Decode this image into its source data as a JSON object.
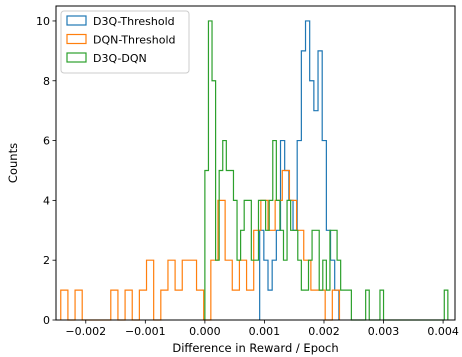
{
  "chart_data": {
    "type": "histogram",
    "xlabel": "Difference in Reward / Epoch",
    "ylabel": "Counts",
    "xlim": [
      -0.0025,
      0.0042
    ],
    "ylim": [
      0,
      10.5
    ],
    "xticks": [
      -0.002,
      -0.001,
      0.0,
      0.001,
      0.002,
      0.003,
      0.004
    ],
    "xtick_labels": [
      "−0.002",
      "−0.001",
      "0.000",
      "0.001",
      "0.002",
      "0.003",
      "0.004"
    ],
    "yticks": [
      0,
      2,
      4,
      6,
      8,
      10
    ],
    "ytick_labels": [
      "0",
      "2",
      "4",
      "6",
      "8",
      "10"
    ],
    "grid": false,
    "legend_position": "upper-left",
    "series": [
      {
        "name": "D3Q-Threshold",
        "color": "#1f77b4",
        "bin_edges": [
          0.00092,
          0.00099,
          0.00106,
          0.00113,
          0.0012,
          0.00127,
          0.00134,
          0.00141,
          0.00148,
          0.00155,
          0.00162,
          0.00169,
          0.00176,
          0.00183,
          0.0019,
          0.00197,
          0.00204,
          0.00211,
          0.00218,
          0.00225
        ],
        "counts": [
          3,
          2,
          1,
          2,
          3,
          6,
          5,
          4,
          3,
          6,
          9,
          10,
          8,
          7,
          9,
          6,
          3,
          2,
          1
        ]
      },
      {
        "name": "DQN-Threshold",
        "color": "#ff7f0e",
        "bin_edges": [
          -0.00242,
          -0.0023,
          -0.00218,
          -0.00206,
          -0.00194,
          -0.00182,
          -0.0017,
          -0.00158,
          -0.00146,
          -0.00134,
          -0.00122,
          -0.0011,
          -0.00098,
          -0.00086,
          -0.00074,
          -0.00062,
          -0.0005,
          -0.00038,
          -0.00026,
          -0.00014,
          -2e-05,
          0.0001,
          0.00022,
          0.00034,
          0.00046,
          0.00058,
          0.0007,
          0.00082,
          0.00094,
          0.00106,
          0.00118,
          0.0013,
          0.00142,
          0.00154,
          0.00166,
          0.00178,
          0.0019,
          0.00202,
          0.00214,
          0.00226
        ],
        "counts": [
          1,
          0,
          1,
          0,
          0,
          0,
          0,
          1,
          0,
          1,
          0,
          1,
          2,
          0,
          1,
          2,
          1,
          2,
          2,
          1,
          0,
          2,
          4,
          2,
          1,
          2,
          1,
          3,
          4,
          3,
          4,
          5,
          4,
          3,
          2,
          1,
          1,
          0,
          1
        ]
      },
      {
        "name": "D3Q-DQN",
        "color": "#2ca02c",
        "bin_edges": [
          0.0,
          6e-05,
          0.00012,
          0.00018,
          0.00024,
          0.0003,
          0.00036,
          0.00042,
          0.00048,
          0.00054,
          0.0006,
          0.00066,
          0.00072,
          0.00078,
          0.00084,
          0.0009,
          0.00096,
          0.00102,
          0.00108,
          0.00114,
          0.0012,
          0.00126,
          0.00132,
          0.00138,
          0.00144,
          0.0015,
          0.00156,
          0.00162,
          0.00168,
          0.00174,
          0.0018,
          0.00186,
          0.00192,
          0.00198,
          0.00204,
          0.0021,
          0.00216,
          0.00222,
          0.00228,
          0.00234,
          0.0024,
          0.00246,
          0.00252,
          0.00258,
          0.00264,
          0.0027,
          0.00276,
          0.00282,
          0.00288,
          0.00294,
          0.003,
          0.00306,
          0.00312,
          0.00318,
          0.00324,
          0.0033,
          0.00336,
          0.00342,
          0.00348,
          0.00354,
          0.0036,
          0.00366,
          0.00372,
          0.00378,
          0.00384,
          0.0039,
          0.00396,
          0.00402,
          0.00408
        ],
        "counts": [
          5,
          10,
          8,
          2,
          5,
          6,
          5,
          5,
          4,
          2,
          3,
          4,
          4,
          2,
          2,
          4,
          4,
          3,
          4,
          6,
          4,
          3,
          2,
          4,
          3,
          3,
          2,
          1,
          1,
          2,
          3,
          3,
          1,
          2,
          1,
          3,
          3,
          2,
          1,
          1,
          1,
          0,
          0,
          0,
          0,
          1,
          0,
          0,
          0,
          1,
          0,
          0,
          0,
          0,
          0,
          0,
          0,
          0,
          0,
          0,
          0,
          0,
          0,
          0,
          0,
          0,
          0,
          1
        ]
      }
    ]
  }
}
